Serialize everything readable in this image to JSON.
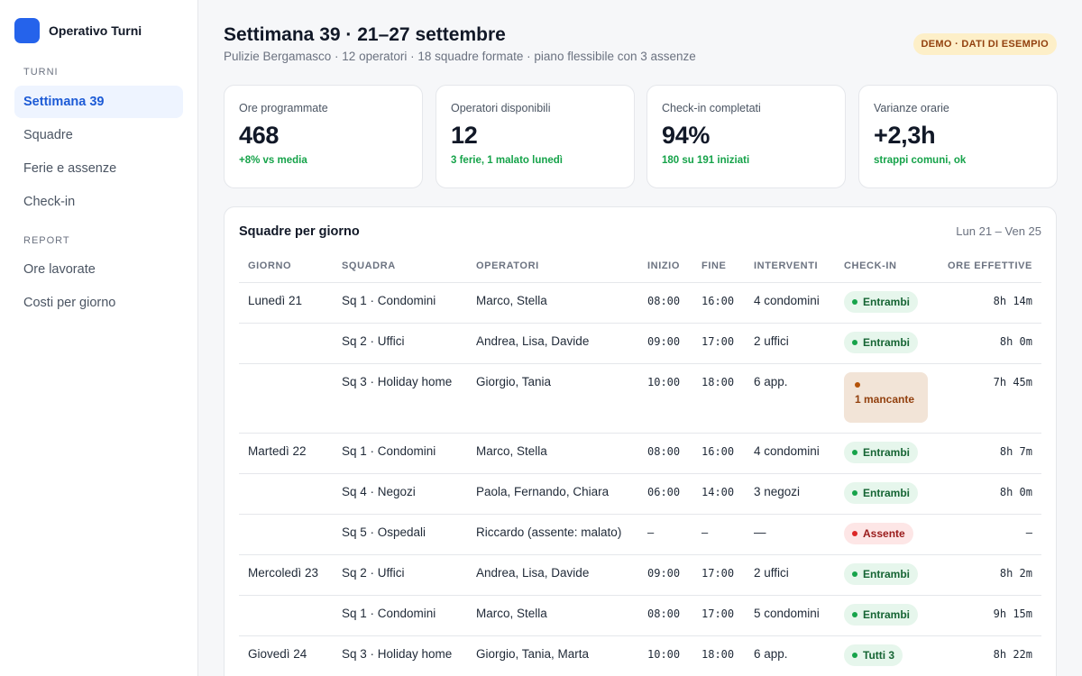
{
  "app": {
    "name": "Operativo Turni"
  },
  "sidebar": {
    "sections": [
      {
        "title": "TURNI",
        "items": [
          {
            "label": "Settimana 39",
            "active": true
          },
          {
            "label": "Squadre"
          },
          {
            "label": "Ferie e assenze"
          },
          {
            "label": "Check-in"
          }
        ]
      },
      {
        "title": "REPORT",
        "items": [
          {
            "label": "Ore lavorate"
          },
          {
            "label": "Costi per giorno"
          }
        ]
      }
    ]
  },
  "header": {
    "title": "Settimana 39 · 21–27 settembre",
    "subtitle": "Pulizie Bergamasco · 12 operatori · 18 squadre formate · piano flessibile con 3 assenze",
    "badge": "DEMO · DATI DI ESEMPIO"
  },
  "kpis": [
    {
      "label": "Ore programmate",
      "value": "468",
      "note": "+8% vs media"
    },
    {
      "label": "Operatori disponibili",
      "value": "12",
      "note": "3 ferie, 1 malato lunedì"
    },
    {
      "label": "Check-in completati",
      "value": "94%",
      "note": "180 su 191 iniziati"
    },
    {
      "label": "Varianze orarie",
      "value": "+2,3h",
      "note": "strappi comuni, ok"
    }
  ],
  "table": {
    "title": "Squadre per giorno",
    "range": "Lun 21 – Ven 25",
    "columns": [
      "GIORNO",
      "SQUADRA",
      "OPERATORI",
      "INIZIO",
      "FINE",
      "INTERVENTI",
      "CHECK-IN",
      "ORE EFFETTIVE"
    ],
    "rows": [
      {
        "day": "Lunedì 21",
        "team": "Sq 1 · Condomini",
        "operators": "Marco, Stella",
        "start": "08:00",
        "end": "16:00",
        "jobs": "4 condomini",
        "checkin": "Entrambi",
        "status": "green",
        "hours": "8h 14m"
      },
      {
        "day": "",
        "team": "Sq 2 · Uffici",
        "operators": "Andrea, Lisa, Davide",
        "start": "09:00",
        "end": "17:00",
        "jobs": "2 uffici",
        "checkin": "Entrambi",
        "status": "green",
        "hours": "8h 0m"
      },
      {
        "day": "",
        "team": "Sq 3 · Holiday home",
        "operators": "Giorgio, Tania",
        "start": "10:00",
        "end": "18:00",
        "jobs": "6 app.",
        "checkin": "1 mancante",
        "status": "warn",
        "hours": "7h 45m"
      },
      {
        "day": "Martedì 22",
        "team": "Sq 1 · Condomini",
        "operators": "Marco, Stella",
        "start": "08:00",
        "end": "16:00",
        "jobs": "4 condomini",
        "checkin": "Entrambi",
        "status": "green",
        "hours": "8h 7m"
      },
      {
        "day": "",
        "team": "Sq 4 · Negozi",
        "operators": "Paola, Fernando, Chiara",
        "start": "06:00",
        "end": "14:00",
        "jobs": "3 negozi",
        "checkin": "Entrambi",
        "status": "green",
        "hours": "8h 0m"
      },
      {
        "day": "",
        "team": "Sq 5 · Ospedali",
        "operators": "Riccardo (assente: malato)",
        "start": "–",
        "end": "–",
        "jobs": "—",
        "checkin": "Assente",
        "status": "red",
        "hours": "–"
      },
      {
        "day": "Mercoledì 23",
        "team": "Sq 2 · Uffici",
        "operators": "Andrea, Lisa, Davide",
        "start": "09:00",
        "end": "17:00",
        "jobs": "2 uffici",
        "checkin": "Entrambi",
        "status": "green",
        "hours": "8h 2m"
      },
      {
        "day": "",
        "team": "Sq 1 · Condomini",
        "operators": "Marco, Stella",
        "start": "08:00",
        "end": "17:00",
        "jobs": "5 condomini",
        "checkin": "Entrambi",
        "status": "green",
        "hours": "9h 15m"
      },
      {
        "day": "Giovedì 24",
        "team": "Sq 3 · Holiday home",
        "operators": "Giorgio, Tania, Marta",
        "start": "10:00",
        "end": "18:00",
        "jobs": "6 app.",
        "checkin": "Tutti 3",
        "status": "green",
        "hours": "8h 22m"
      }
    ]
  }
}
